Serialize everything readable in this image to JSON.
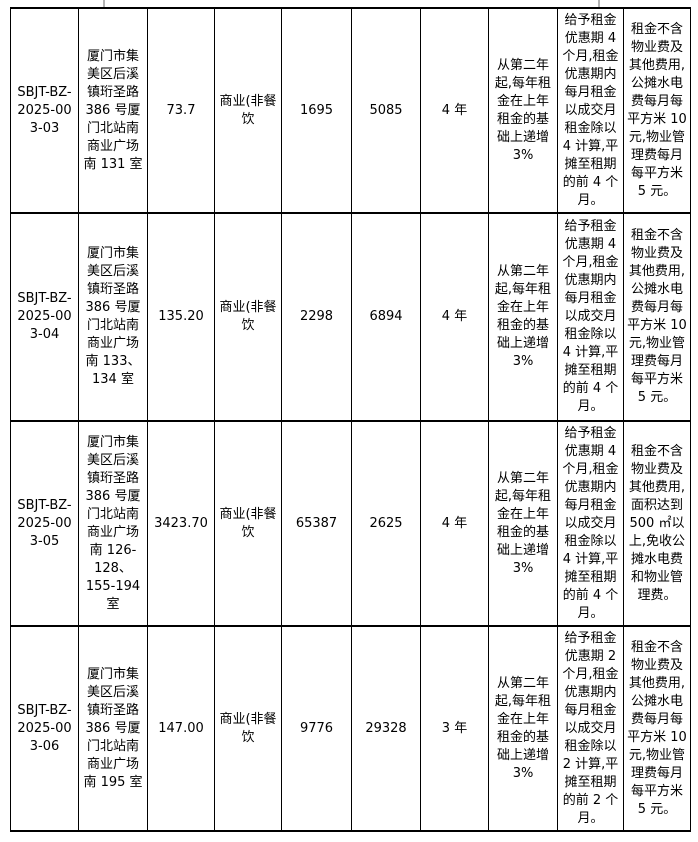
{
  "colors": {
    "background": "#ffffff",
    "table_border": "#000000",
    "text": "#000000",
    "margin_tick": "#b3b3b3"
  },
  "table": {
    "rows": [
      [
        "SBJT-BZ-2025-003-03",
        "厦门市集美区后溪镇珩圣路 386 号厦门北站南商业广场南 131 室",
        "73.7",
        "商业(非餐饮",
        "1695",
        "5085",
        "4 年",
        "从第二年起,每年租金在上年租金的基础上递增3%",
        "给予租金优惠期 4 个月,租金优惠期内每月租金以成交月租金除以 4 计算,平摊至租期的前 4 个月。",
        "租金不含物业费及其他费用,公摊水电费每月每平方米 10 元,物业管理费每月每平方米 5 元。"
      ],
      [
        "SBJT-BZ-2025-003-04",
        "厦门市集美区后溪镇珩圣路 386 号厦门北站南商业广场南 133、134 室",
        "135.20",
        "商业(非餐饮",
        "2298",
        "6894",
        "4 年",
        "从第二年起,每年租金在上年租金的基础上递增3%",
        "给予租金优惠期 4 个月,租金优惠期内每月租金以成交月租金除以 4 计算,平摊至租期的前 4 个月。",
        "租金不含物业费及其他费用,公摊水电费每月每平方米 10 元,物业管理费每月每平方米 5 元。"
      ],
      [
        "SBJT-BZ-2025-003-05",
        "厦门市集美区后溪镇珩圣路 386 号厦门北站南商业广场南 126-128、155-194 室",
        "3423.70",
        "商业(非餐饮",
        "65387",
        "2625",
        "4 年",
        "从第二年起,每年租金在上年租金的基础上递增3%",
        "给予租金优惠期 4 个月,租金优惠期内每月租金以成交月租金除以 4 计算,平摊至租期的前 4 个月。",
        "租金不含物业费及其他费用,面积达到 500 ㎡以上,免收公摊水电费和物业管理费。"
      ],
      [
        "SBJT-BZ-2025-003-06",
        "厦门市集美区后溪镇珩圣路 386 号厦门北站南商业广场南 195 室",
        "147.00",
        "商业(非餐饮",
        "9776",
        "29328",
        "3 年",
        "从第二年起,每年租金在上年租金的基础上递增3%",
        "给予租金优惠期 2 个月,租金优惠期内每月租金以成交月租金除以 2 计算,平摊至租期的前 2 个月。",
        "租金不含物业费及其他费用,公摊水电费每月每平方米 10 元,物业管理费每月每平方米 5 元。"
      ]
    ]
  }
}
